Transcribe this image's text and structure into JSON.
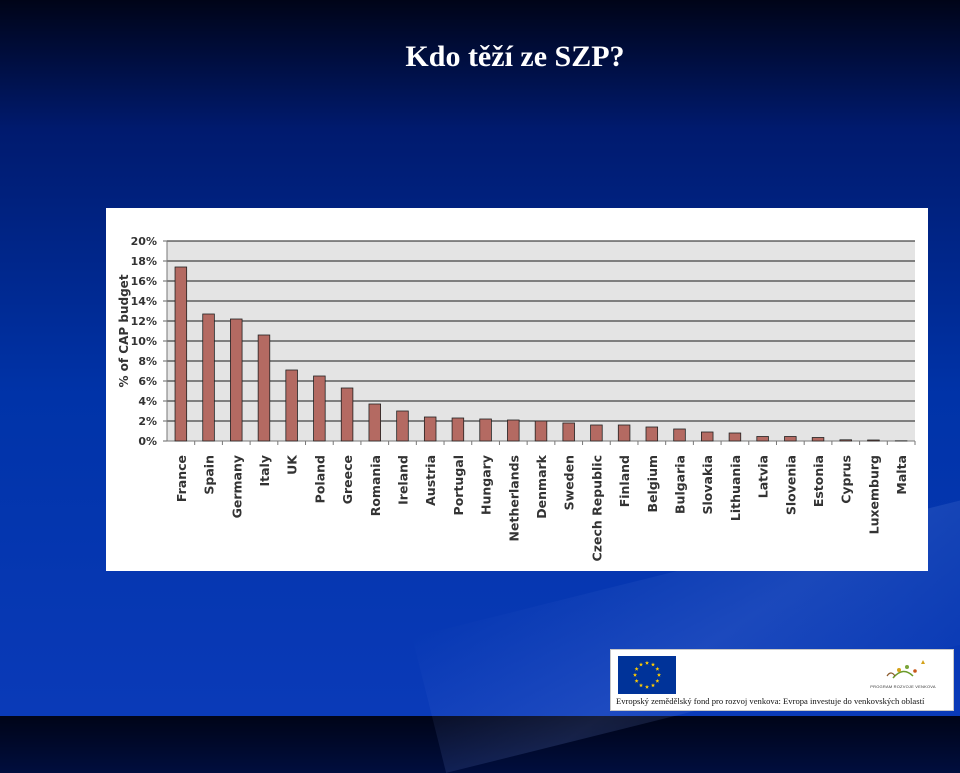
{
  "slide": {
    "title": "Kdo těží ze SZP?"
  },
  "chart_data": {
    "type": "bar",
    "ylabel": "% of CAP budget",
    "ylim": [
      0,
      20
    ],
    "yticks": [
      "0%",
      "2%",
      "4%",
      "6%",
      "8%",
      "10%",
      "12%",
      "14%",
      "16%",
      "18%",
      "20%"
    ],
    "grid": true,
    "bar_color": "#b46a62",
    "categories": [
      "France",
      "Spain",
      "Germany",
      "Italy",
      "UK",
      "Poland",
      "Greece",
      "Romania",
      "Ireland",
      "Austria",
      "Portugal",
      "Hungary",
      "Netherlands",
      "Denmark",
      "Sweden",
      "Czech Republic",
      "Finland",
      "Belgium",
      "Bulgaria",
      "Slovakia",
      "Lithuania",
      "Latvia",
      "Slovenia",
      "Estonia",
      "Cyprus",
      "Luxemburg",
      "Malta"
    ],
    "values": [
      17.4,
      12.7,
      12.2,
      10.6,
      7.1,
      6.5,
      5.3,
      3.7,
      3.0,
      2.4,
      2.3,
      2.2,
      2.1,
      2.0,
      1.8,
      1.6,
      1.6,
      1.4,
      1.2,
      0.9,
      0.8,
      0.45,
      0.45,
      0.35,
      0.12,
      0.1,
      0.02
    ]
  },
  "footer": {
    "caption": "Evropský zemědělský fond pro rozvoj venkova: Evropa investuje do venkovských oblastí",
    "program_label": "PROGRAM ROZVOJE VENKOVA",
    "eu_flag_icon": "eu-flag-icon",
    "program_logo_icon": "program-logo-icon"
  }
}
